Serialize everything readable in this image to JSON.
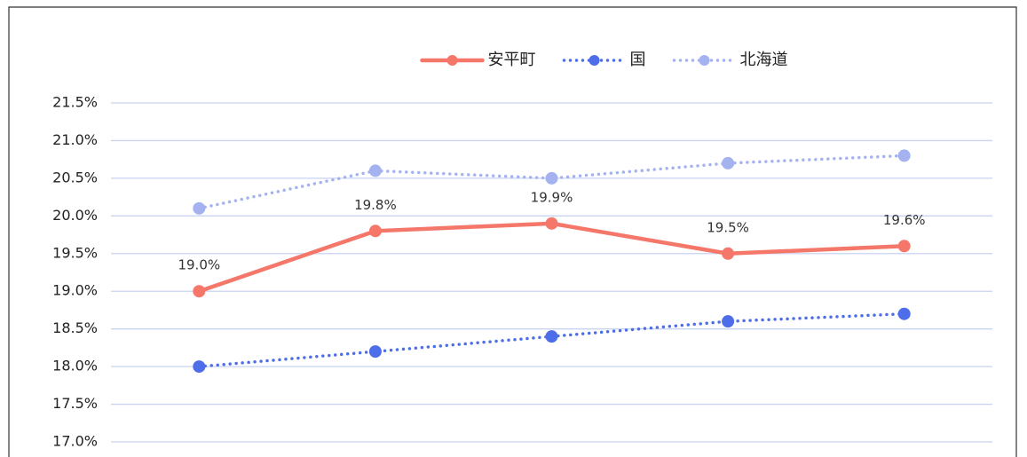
{
  "chart_data": {
    "type": "line",
    "categories": [
      null,
      null,
      null,
      null,
      null
    ],
    "series": [
      {
        "name": "安平町",
        "color": "#f4776a",
        "line_style": "solid",
        "values": [
          19.0,
          19.8,
          19.9,
          19.5,
          19.6
        ],
        "value_labels": [
          "19.0%",
          "19.8%",
          "19.9%",
          "19.5%",
          "19.6%"
        ]
      },
      {
        "name": "国",
        "color": "#4d6ee8",
        "line_style": "dotted",
        "values": [
          18.0,
          18.2,
          18.4,
          18.6,
          18.7
        ]
      },
      {
        "name": "北海道",
        "color": "#a4b2f0",
        "line_style": "dotted",
        "values": [
          20.1,
          20.6,
          20.5,
          20.7,
          20.8
        ]
      }
    ],
    "ylim": [
      17.0,
      21.5
    ],
    "yticks": [
      {
        "value": 17.0,
        "label": "17.0%"
      },
      {
        "value": 17.5,
        "label": "17.5%"
      },
      {
        "value": 18.0,
        "label": "18.0%"
      },
      {
        "value": 18.5,
        "label": "18.5%"
      },
      {
        "value": 19.0,
        "label": "19.0%"
      },
      {
        "value": 19.5,
        "label": "19.5%"
      },
      {
        "value": 20.0,
        "label": "20.0%"
      },
      {
        "value": 20.5,
        "label": "20.5%"
      },
      {
        "value": 21.0,
        "label": "21.0%"
      },
      {
        "value": 21.5,
        "label": "21.5%"
      }
    ],
    "grid": true,
    "legend": "top"
  }
}
